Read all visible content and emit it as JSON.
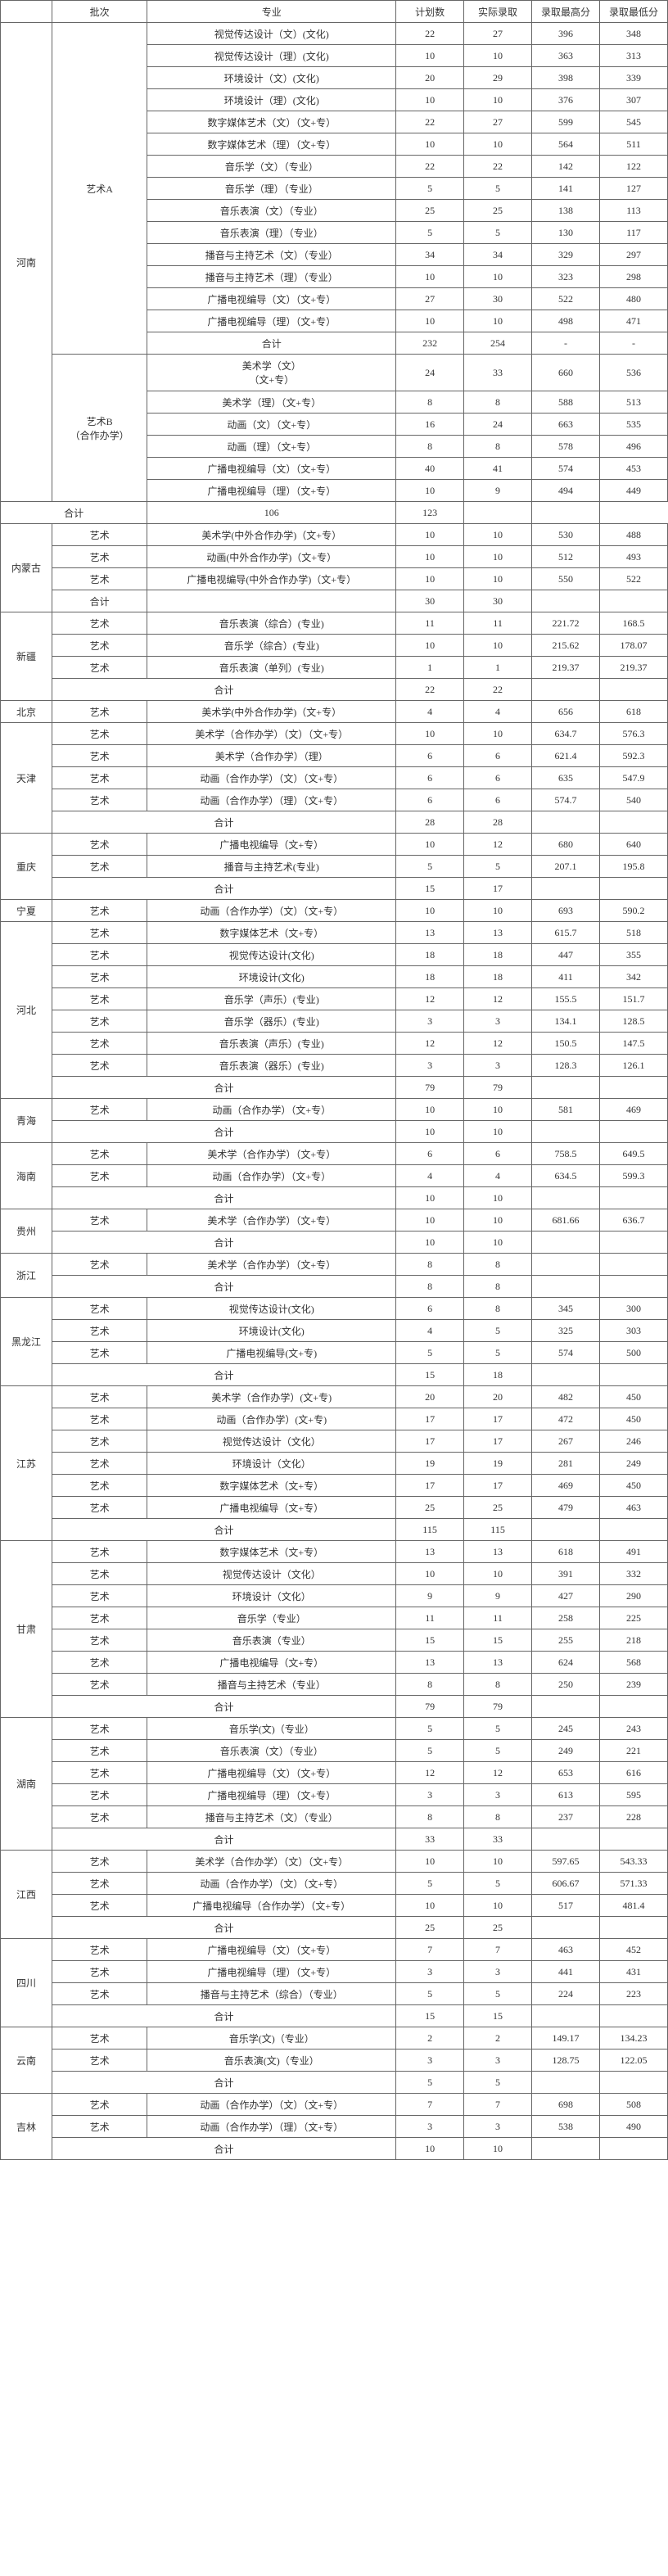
{
  "headers": [
    "",
    "批次",
    "专业",
    "计划数",
    "实际录取",
    "录取最高分",
    "录取最低分"
  ],
  "rows": [
    {
      "p": "河南",
      "pr": 21,
      "b": "艺术A",
      "br": 15,
      "m": "视觉传达设计（文）(文化)",
      "c": "22",
      "a": "27",
      "h": "396",
      "l": "348"
    },
    {
      "m": "视觉传达设计（理）(文化)",
      "c": "10",
      "a": "10",
      "h": "363",
      "l": "313"
    },
    {
      "m": "环境设计（文）(文化)",
      "c": "20",
      "a": "29",
      "h": "398",
      "l": "339"
    },
    {
      "m": "环境设计（理）(文化)",
      "c": "10",
      "a": "10",
      "h": "376",
      "l": "307"
    },
    {
      "m": "数字媒体艺术（文）（文+专）",
      "c": "22",
      "a": "27",
      "h": "599",
      "l": "545"
    },
    {
      "m": "数字媒体艺术（理）（文+专）",
      "c": "10",
      "a": "10",
      "h": "564",
      "l": "511"
    },
    {
      "m": "音乐学（文）（专业）",
      "c": "22",
      "a": "22",
      "h": "142",
      "l": "122"
    },
    {
      "m": "音乐学（理）（专业）",
      "c": "5",
      "a": "5",
      "h": "141",
      "l": "127"
    },
    {
      "m": "音乐表演（文）（专业）",
      "c": "25",
      "a": "25",
      "h": "138",
      "l": "113"
    },
    {
      "m": "音乐表演（理）（专业）",
      "c": "5",
      "a": "5",
      "h": "130",
      "l": "117"
    },
    {
      "m": "播音与主持艺术（文）（专业）",
      "c": "34",
      "a": "34",
      "h": "329",
      "l": "297"
    },
    {
      "m": "播音与主持艺术（理）（专业）",
      "c": "10",
      "a": "10",
      "h": "323",
      "l": "298"
    },
    {
      "m": "广播电视编导（文）（文+专）",
      "c": "27",
      "a": "30",
      "h": "522",
      "l": "480"
    },
    {
      "m": "广播电视编导（理）（文+专）",
      "c": "10",
      "a": "10",
      "h": "498",
      "l": "471"
    },
    {
      "m": "合计",
      "c": "232",
      "a": "254",
      "h": "-",
      "l": "-",
      "sum": true
    },
    {
      "b": "艺术B\n（合作办学）",
      "br": 6,
      "m": "美术学（文）\n（文+专）",
      "c": "24",
      "a": "33",
      "h": "660",
      "l": "536",
      "tall": true
    },
    {
      "m": "美术学（理）（文+专）",
      "c": "8",
      "a": "8",
      "h": "588",
      "l": "513"
    },
    {
      "m": "动画（文）（文+专）",
      "c": "16",
      "a": "24",
      "h": "663",
      "l": "535"
    },
    {
      "m": "动画（理）（文+专）",
      "c": "8",
      "a": "8",
      "h": "578",
      "l": "496"
    },
    {
      "m": "广播电视编导（文）（文+专）",
      "c": "40",
      "a": "41",
      "h": "574",
      "l": "453"
    },
    {
      "m": "广播电视编导（理）（文+专）",
      "c": "10",
      "a": "9",
      "h": "494",
      "l": "449"
    },
    {
      "sp": 2,
      "m": "合计",
      "c": "106",
      "a": "123",
      "h": "",
      "l": ""
    },
    {
      "p": "内蒙古",
      "pr": 4,
      "b": "艺术",
      "br": 1,
      "m": "美术学(中外合作办学)（文+专）",
      "c": "10",
      "a": "10",
      "h": "530",
      "l": "488"
    },
    {
      "b": "艺术",
      "br": 1,
      "m": "动画(中外合作办学)（文+专）",
      "c": "10",
      "a": "10",
      "h": "512",
      "l": "493"
    },
    {
      "b": "艺术",
      "br": 1,
      "m": "广播电视编导(中外合作办学)（文+专）",
      "c": "10",
      "a": "10",
      "h": "550",
      "l": "522"
    },
    {
      "b": "合计",
      "br": 1,
      "m": "",
      "c": "30",
      "a": "30",
      "h": "",
      "l": ""
    },
    {
      "p": "新疆",
      "pr": 4,
      "b": "艺术",
      "br": 1,
      "m": "音乐表演（综合）(专业)",
      "c": "11",
      "a": "11",
      "h": "221.72",
      "l": "168.5"
    },
    {
      "b": "艺术",
      "br": 1,
      "m": "音乐学（综合）(专业)",
      "c": "10",
      "a": "10",
      "h": "215.62",
      "l": "178.07"
    },
    {
      "b": "艺术",
      "br": 1,
      "m": "音乐表演（单列）(专业)",
      "c": "1",
      "a": "1",
      "h": "219.37",
      "l": "219.37"
    },
    {
      "sp": 2,
      "m": "合计",
      "c": "22",
      "a": "22",
      "h": "",
      "l": ""
    },
    {
      "p": "北京",
      "pr": 1,
      "b": "艺术",
      "br": 1,
      "m": "美术学(中外合作办学)（文+专）",
      "c": "4",
      "a": "4",
      "h": "656",
      "l": "618"
    },
    {
      "p": "天津",
      "pr": 5,
      "b": "艺术",
      "br": 1,
      "m": "美术学（合作办学）（文）（文+专）",
      "c": "10",
      "a": "10",
      "h": "634.7",
      "l": "576.3"
    },
    {
      "b": "艺术",
      "br": 1,
      "m": "美术学（合作办学）（理）",
      "c": "6",
      "a": "6",
      "h": "621.4",
      "l": "592.3"
    },
    {
      "b": "艺术",
      "br": 1,
      "m": "动画（合作办学）（文）（文+专）",
      "c": "6",
      "a": "6",
      "h": "635",
      "l": "547.9"
    },
    {
      "b": "艺术",
      "br": 1,
      "m": "动画（合作办学）（理）（文+专）",
      "c": "6",
      "a": "6",
      "h": "574.7",
      "l": "540"
    },
    {
      "sp": 2,
      "m": "合计",
      "c": "28",
      "a": "28",
      "h": "",
      "l": ""
    },
    {
      "p": "重庆",
      "pr": 3,
      "b": "艺术",
      "br": 1,
      "m": "广播电视编导（文+专）",
      "c": "10",
      "a": "12",
      "h": "680",
      "l": "640"
    },
    {
      "b": "艺术",
      "br": 1,
      "m": "播音与主持艺术(专业)",
      "c": "5",
      "a": "5",
      "h": "207.1",
      "l": "195.8"
    },
    {
      "sp": 2,
      "m": "合计",
      "c": "15",
      "a": "17",
      "h": "",
      "l": ""
    },
    {
      "p": "宁夏",
      "pr": 1,
      "b": "艺术",
      "br": 1,
      "m": "动画（合作办学）（文）（文+专）",
      "c": "10",
      "a": "10",
      "h": "693",
      "l": "590.2"
    },
    {
      "p": "河北",
      "pr": 8,
      "b": "艺术",
      "br": 1,
      "m": "数字媒体艺术（文+专）",
      "c": "13",
      "a": "13",
      "h": "615.7",
      "l": "518"
    },
    {
      "b": "艺术",
      "br": 1,
      "m": "视觉传达设计(文化)",
      "c": "18",
      "a": "18",
      "h": "447",
      "l": "355"
    },
    {
      "b": "艺术",
      "br": 1,
      "m": "环境设计(文化)",
      "c": "18",
      "a": "18",
      "h": "411",
      "l": "342"
    },
    {
      "b": "艺术",
      "br": 1,
      "m": "音乐学（声乐）(专业)",
      "c": "12",
      "a": "12",
      "h": "155.5",
      "l": "151.7"
    },
    {
      "b": "艺术",
      "br": 1,
      "m": "音乐学（器乐）(专业)",
      "c": "3",
      "a": "3",
      "h": "134.1",
      "l": "128.5"
    },
    {
      "b": "艺术",
      "br": 1,
      "m": "音乐表演（声乐）(专业)",
      "c": "12",
      "a": "12",
      "h": "150.5",
      "l": "147.5"
    },
    {
      "b": "艺术",
      "br": 1,
      "m": "音乐表演（器乐）(专业)",
      "c": "3",
      "a": "3",
      "h": "128.3",
      "l": "126.1"
    },
    {
      "sp": 2,
      "m": "合计",
      "c": "79",
      "a": "79",
      "h": "",
      "l": ""
    },
    {
      "p": "青海",
      "pr": 2,
      "b": "艺术",
      "br": 1,
      "m": "动画（合作办学）（文+专）",
      "c": "10",
      "a": "10",
      "h": "581",
      "l": "469"
    },
    {
      "sp": 2,
      "m": "合计",
      "c": "10",
      "a": "10",
      "h": "",
      "l": ""
    },
    {
      "p": "海南",
      "pr": 3,
      "b": "艺术",
      "br": 1,
      "m": "美术学（合作办学）（文+专）",
      "c": "6",
      "a": "6",
      "h": "758.5",
      "l": "649.5"
    },
    {
      "b": "艺术",
      "br": 1,
      "m": "动画（合作办学）（文+专）",
      "c": "4",
      "a": "4",
      "h": "634.5",
      "l": "599.3"
    },
    {
      "sp": 2,
      "m": "合计",
      "c": "10",
      "a": "10",
      "h": "",
      "l": ""
    },
    {
      "p": "贵州",
      "pr": 2,
      "b": "艺术",
      "br": 1,
      "m": "美术学（合作办学）（文+专）",
      "c": "10",
      "a": "10",
      "h": "681.66",
      "l": "636.7"
    },
    {
      "sp": 2,
      "m": "合计",
      "c": "10",
      "a": "10",
      "h": "",
      "l": ""
    },
    {
      "p": "浙江",
      "pr": 2,
      "b": "艺术",
      "br": 1,
      "m": "美术学（合作办学）（文+专）",
      "c": "8",
      "a": "8",
      "h": "",
      "l": ""
    },
    {
      "sp": 2,
      "m": "合计",
      "c": "8",
      "a": "8",
      "h": "",
      "l": ""
    },
    {
      "p": "黑龙江",
      "pr": 4,
      "b": "艺术",
      "br": 1,
      "m": "视觉传达设计(文化)",
      "c": "6",
      "a": "8",
      "h": "345",
      "l": "300"
    },
    {
      "b": "艺术",
      "br": 1,
      "m": "环境设计(文化)",
      "c": "4",
      "a": "5",
      "h": "325",
      "l": "303"
    },
    {
      "b": "艺术",
      "br": 1,
      "m": "广播电视编导(文+专)",
      "c": "5",
      "a": "5",
      "h": "574",
      "l": "500"
    },
    {
      "sp": 2,
      "m": "合计",
      "c": "15",
      "a": "18",
      "h": "",
      "l": ""
    },
    {
      "p": "江苏",
      "pr": 7,
      "b": "艺术",
      "br": 1,
      "m": "美术学（合作办学）(文+专)",
      "c": "20",
      "a": "20",
      "h": "482",
      "l": "450"
    },
    {
      "b": "艺术",
      "br": 1,
      "m": "动画（合作办学）(文+专)",
      "c": "17",
      "a": "17",
      "h": "472",
      "l": "450"
    },
    {
      "b": "艺术",
      "br": 1,
      "m": "视觉传达设计（文化）",
      "c": "17",
      "a": "17",
      "h": "267",
      "l": "246"
    },
    {
      "b": "艺术",
      "br": 1,
      "m": "环境设计（文化）",
      "c": "19",
      "a": "19",
      "h": "281",
      "l": "249"
    },
    {
      "b": "艺术",
      "br": 1,
      "m": "数字媒体艺术（文+专）",
      "c": "17",
      "a": "17",
      "h": "469",
      "l": "450"
    },
    {
      "b": "艺术",
      "br": 1,
      "m": "广播电视编导（文+专）",
      "c": "25",
      "a": "25",
      "h": "479",
      "l": "463"
    },
    {
      "sp": 2,
      "m": "合计",
      "c": "115",
      "a": "115",
      "h": "",
      "l": ""
    },
    {
      "p": "甘肃",
      "pr": 8,
      "b": "艺术",
      "br": 1,
      "m": "数字媒体艺术（文+专）",
      "c": "13",
      "a": "13",
      "h": "618",
      "l": "491"
    },
    {
      "b": "艺术",
      "br": 1,
      "m": "视觉传达设计（文化）",
      "c": "10",
      "a": "10",
      "h": "391",
      "l": "332"
    },
    {
      "b": "艺术",
      "br": 1,
      "m": "环境设计（文化）",
      "c": "9",
      "a": "9",
      "h": "427",
      "l": "290"
    },
    {
      "b": "艺术",
      "br": 1,
      "m": "音乐学（专业）",
      "c": "11",
      "a": "11",
      "h": "258",
      "l": "225"
    },
    {
      "b": "艺术",
      "br": 1,
      "m": "音乐表演（专业）",
      "c": "15",
      "a": "15",
      "h": "255",
      "l": "218"
    },
    {
      "b": "艺术",
      "br": 1,
      "m": "广播电视编导（文+专）",
      "c": "13",
      "a": "13",
      "h": "624",
      "l": "568"
    },
    {
      "b": "艺术",
      "br": 1,
      "m": "播音与主持艺术（专业）",
      "c": "8",
      "a": "8",
      "h": "250",
      "l": "239"
    },
    {
      "sp": 2,
      "m": "合计",
      "c": "79",
      "a": "79",
      "h": "",
      "l": ""
    },
    {
      "p": "湖南",
      "pr": 6,
      "b": "艺术",
      "br": 1,
      "m": "音乐学(文)（专业）",
      "c": "5",
      "a": "5",
      "h": "245",
      "l": "243"
    },
    {
      "b": "艺术",
      "br": 1,
      "m": "音乐表演（文）（专业）",
      "c": "5",
      "a": "5",
      "h": "249",
      "l": "221"
    },
    {
      "b": "艺术",
      "br": 1,
      "m": "广播电视编导（文）（文+专）",
      "c": "12",
      "a": "12",
      "h": "653",
      "l": "616"
    },
    {
      "b": "艺术",
      "br": 1,
      "m": "广播电视编导（理）（文+专）",
      "c": "3",
      "a": "3",
      "h": "613",
      "l": "595"
    },
    {
      "b": "艺术",
      "br": 1,
      "m": "播音与主持艺术（文）（专业）",
      "c": "8",
      "a": "8",
      "h": "237",
      "l": "228"
    },
    {
      "sp": 2,
      "m": "合计",
      "c": "33",
      "a": "33",
      "h": "",
      "l": ""
    },
    {
      "p": "江西",
      "pr": 4,
      "b": "艺术",
      "br": 1,
      "m": "美术学（合作办学）（文）（文+专）",
      "c": "10",
      "a": "10",
      "h": "597.65",
      "l": "543.33"
    },
    {
      "b": "艺术",
      "br": 1,
      "m": "动画（合作办学）（文）（文+专）",
      "c": "5",
      "a": "5",
      "h": "606.67",
      "l": "571.33"
    },
    {
      "b": "艺术",
      "br": 1,
      "m": "广播电视编导（合作办学）（文+专）",
      "c": "10",
      "a": "10",
      "h": "517",
      "l": "481.4"
    },
    {
      "sp": 2,
      "m": "合计",
      "c": "25",
      "a": "25",
      "h": "",
      "l": ""
    },
    {
      "p": "四川",
      "pr": 4,
      "b": "艺术",
      "br": 1,
      "m": "广播电视编导（文）（文+专）",
      "c": "7",
      "a": "7",
      "h": "463",
      "l": "452"
    },
    {
      "b": "艺术",
      "br": 1,
      "m": "广播电视编导（理）（文+专）",
      "c": "3",
      "a": "3",
      "h": "441",
      "l": "431"
    },
    {
      "b": "艺术",
      "br": 1,
      "m": "播音与主持艺术（综合）（专业）",
      "c": "5",
      "a": "5",
      "h": "224",
      "l": "223"
    },
    {
      "sp": 2,
      "m": "合计",
      "c": "15",
      "a": "15",
      "h": "",
      "l": ""
    },
    {
      "p": "云南",
      "pr": 3,
      "b": "艺术",
      "br": 1,
      "m": "音乐学(文)（专业）",
      "c": "2",
      "a": "2",
      "h": "149.17",
      "l": "134.23"
    },
    {
      "b": "艺术",
      "br": 1,
      "m": "音乐表演(文)（专业）",
      "c": "3",
      "a": "3",
      "h": "128.75",
      "l": "122.05"
    },
    {
      "sp": 2,
      "m": "合计",
      "c": "5",
      "a": "5",
      "h": "",
      "l": ""
    },
    {
      "p": "吉林",
      "pr": 3,
      "b": "艺术",
      "br": 1,
      "m": "动画（合作办学）（文）（文+专）",
      "c": "7",
      "a": "7",
      "h": "698",
      "l": "508"
    },
    {
      "b": "艺术",
      "br": 1,
      "m": "动画（合作办学）（理）（文+专）",
      "c": "3",
      "a": "3",
      "h": "538",
      "l": "490"
    },
    {
      "sp": 2,
      "m": "合计",
      "c": "10",
      "a": "10",
      "h": "",
      "l": ""
    }
  ]
}
